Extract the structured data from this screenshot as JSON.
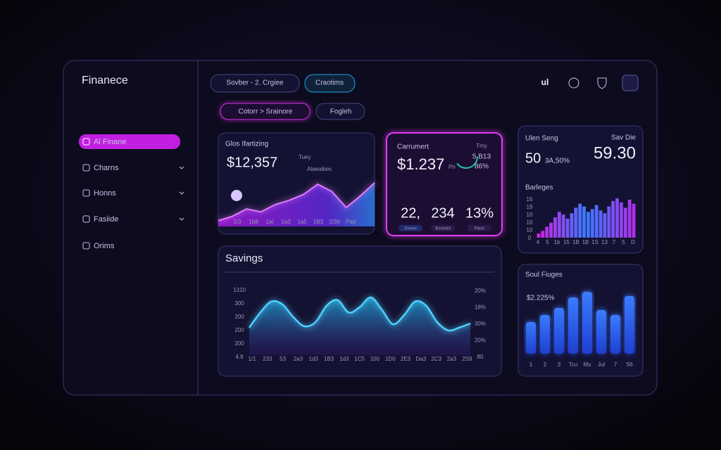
{
  "sidebar": {
    "brand": "Finanece",
    "nav": [
      "Al Finane",
      "Charns",
      "Honns",
      "Fasiide",
      "Orims"
    ]
  },
  "toolbar": {
    "filter": "Sovber - 2. Crgiee",
    "action": "Craotims",
    "icon_label": "ul"
  },
  "breadcrumbs": [
    "Cotorr > Srainore",
    "Fogleh"
  ],
  "card_trading": {
    "title": "Glos Ifartizing",
    "value": "$12,357",
    "tag": "Tuey",
    "legend": "Alaeaibes",
    "x_labels": [
      "1/3",
      "1b8",
      "1al",
      "1a3",
      "1a5",
      "1B3",
      "2/36",
      "Pad"
    ],
    "values": [
      8,
      14,
      24,
      20,
      30,
      36,
      44,
      58,
      48,
      26,
      42,
      60
    ]
  },
  "card_current": {
    "title": "Carrumert",
    "value": "$1.237",
    "unit": "Pn",
    "side": [
      "Tmy",
      "5 B13",
      "86%"
    ],
    "stats": [
      {
        "value": "22,",
        "label": "Ssvew"
      },
      {
        "value": "234",
        "label": "Bsvanid"
      },
      {
        "value": "13%",
        "label": "Pacis"
      }
    ]
  },
  "card_user": {
    "title": "Ulen Seng",
    "badge": "Sav Die",
    "score": "50",
    "rate": "3A,50%",
    "total": "59.30",
    "chart_title": "Barleges",
    "y_labels": [
      "16",
      "19",
      "10",
      "10",
      "10",
      "0"
    ],
    "x_labels": [
      "4",
      "5",
      "1b",
      "15",
      "1B",
      "1B",
      "1S",
      "13",
      "7",
      "5",
      "D"
    ],
    "values": [
      6,
      10,
      16,
      22,
      30,
      38,
      34,
      28,
      36,
      44,
      50,
      46,
      38,
      42,
      48,
      40,
      36,
      46,
      54,
      58,
      52,
      44,
      56,
      50
    ]
  },
  "card_savings": {
    "title": "Savings",
    "y_labels_left": [
      "1310",
      "300",
      "200",
      "200",
      "200",
      "4.9"
    ],
    "y_labels_right": [
      "20%",
      "18%",
      "30%",
      "20%",
      "80"
    ],
    "x_labels": [
      "1/1",
      "233",
      "53",
      "2a3",
      "1d3",
      "1B3",
      "1d3",
      "1C5",
      "100",
      "1D0",
      "2E3",
      "Da3",
      "2C3",
      "2a3",
      "2S9"
    ],
    "values": [
      40,
      62,
      78,
      74,
      55,
      42,
      48,
      72,
      80,
      62,
      70,
      84,
      66,
      45,
      58,
      78,
      72,
      48,
      36,
      40,
      46
    ]
  },
  "card_figures": {
    "title": "Soul Fiuges",
    "value": "$2.225%",
    "x_labels": [
      "1",
      "2",
      "3",
      "Tcu",
      "Mu",
      "Jul",
      "7",
      "S6"
    ],
    "values": [
      45,
      55,
      65,
      80,
      88,
      62,
      55,
      82
    ]
  }
}
